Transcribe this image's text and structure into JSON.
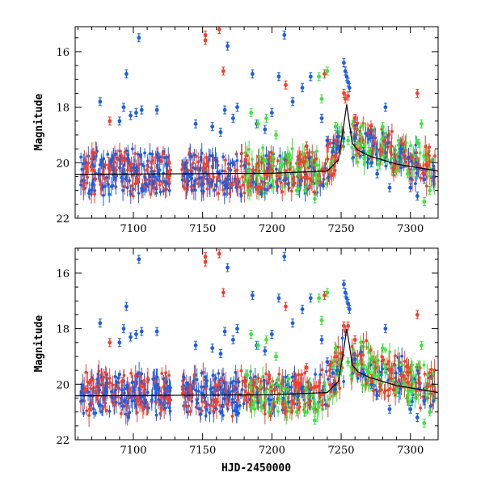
{
  "chart_data": [
    {
      "type": "scatter",
      "panel": "top",
      "title": "",
      "xlabel": "",
      "ylabel": "Magnitude",
      "xlim": [
        7058,
        7320
      ],
      "ylim": [
        22,
        15.1
      ],
      "y_inverted": true,
      "xticks": [
        7100,
        7150,
        7200,
        7250,
        7300
      ],
      "xtick_labels": [
        "7100",
        "7150",
        "7200",
        "7250",
        "7300"
      ],
      "yticks": [
        16,
        18,
        20,
        22
      ],
      "ytick_labels": [
        "16",
        "18",
        "20",
        "22"
      ],
      "model_curve": {
        "name": "model",
        "color": "#000000",
        "x": [
          7058,
          7200,
          7240,
          7248,
          7252,
          7254,
          7256,
          7258,
          7262,
          7270,
          7290,
          7320
        ],
        "y": [
          20.42,
          20.38,
          20.3,
          19.9,
          18.6,
          17.9,
          18.6,
          19.3,
          19.55,
          19.75,
          20.05,
          20.3
        ]
      },
      "series": [
        {
          "name": "blue observations",
          "color": "#1e5fe0",
          "points": [
            [
              7076,
              17.8
            ],
            [
              7090,
              18.5
            ],
            [
              7093,
              18.0
            ],
            [
              7095,
              16.8
            ],
            [
              7098,
              18.3
            ],
            [
              7102,
              18.2
            ],
            [
              7104,
              15.5
            ],
            [
              7106,
              18.1
            ],
            [
              7117,
              18.1
            ],
            [
              7145,
              18.6
            ],
            [
              7157,
              18.7
            ],
            [
              7163,
              18.9
            ],
            [
              7166,
              18.1
            ],
            [
              7168,
              15.8
            ],
            [
              7172,
              18.4
            ],
            [
              7175,
              18.0
            ],
            [
              7186,
              16.8
            ],
            [
              7189,
              18.6
            ],
            [
              7195,
              18.8
            ],
            [
              7200,
              18.2
            ],
            [
              7205,
              16.9
            ],
            [
              7209,
              15.4
            ],
            [
              7215,
              17.8
            ],
            [
              7222,
              17.3
            ],
            [
              7228,
              16.9
            ],
            [
              7236,
              18.4
            ],
            [
              7240,
              19.2
            ],
            [
              7244,
              19.6
            ],
            [
              7247,
              19.5
            ],
            [
              7252,
              16.4
            ],
            [
              7253,
              16.7
            ],
            [
              7254,
              16.9
            ],
            [
              7255,
              17.1
            ],
            [
              7256,
              17.3
            ],
            [
              7260,
              19.1
            ],
            [
              7266,
              19.6
            ],
            [
              7272,
              20.0
            ],
            [
              7276,
              20.4
            ],
            [
              7282,
              18.0
            ],
            [
              7285,
              20.9
            ],
            [
              7293,
              19.5
            ],
            [
              7300,
              20.9
            ],
            [
              7305,
              21.2
            ],
            [
              7310,
              20.6
            ]
          ]
        },
        {
          "name": "red observations",
          "color": "#f0412e",
          "points": [
            [
              7066,
              20.2
            ],
            [
              7083,
              18.5
            ],
            [
              7092,
              19.9
            ],
            [
              7103,
              20.6
            ],
            [
              7125,
              20.5
            ],
            [
              7152,
              15.4
            ],
            [
              7152,
              15.6
            ],
            [
              7162,
              15.2
            ],
            [
              7165,
              16.7
            ],
            [
              7181,
              19.9
            ],
            [
              7198,
              19.8
            ],
            [
              7210,
              17.2
            ],
            [
              7225,
              19.4
            ],
            [
              7238,
              16.8
            ],
            [
              7242,
              19.3
            ],
            [
              7252,
              17.5
            ],
            [
              7253,
              17.7
            ],
            [
              7255,
              17.6
            ],
            [
              7260,
              18.4
            ],
            [
              7272,
              19.8
            ],
            [
              7288,
              20.2
            ],
            [
              7295,
              19.7
            ],
            [
              7305,
              17.5
            ],
            [
              7312,
              20.1
            ]
          ]
        },
        {
          "name": "green observations",
          "color": "#3ee33e",
          "points": [
            [
              7185,
              18.2
            ],
            [
              7190,
              18.6
            ],
            [
              7196,
              18.4
            ],
            [
              7203,
              19.0
            ],
            [
              7212,
              19.8
            ],
            [
              7218,
              21.0
            ],
            [
              7224,
              21.0
            ],
            [
              7231,
              21.3
            ],
            [
              7234,
              16.9
            ],
            [
              7236,
              17.7
            ],
            [
              7240,
              16.7
            ],
            [
              7246,
              18.7
            ],
            [
              7255,
              19.2
            ],
            [
              7262,
              19.3
            ],
            [
              7270,
              19.6
            ],
            [
              7280,
              18.7
            ],
            [
              7290,
              20.3
            ],
            [
              7298,
              20.4
            ],
            [
              7306,
              19.3
            ],
            [
              7308,
              18.6
            ],
            [
              7310,
              21.4
            ],
            [
              7314,
              21.0
            ]
          ]
        }
      ]
    },
    {
      "type": "scatter",
      "panel": "bottom",
      "title": "",
      "xlabel": "HJD-2450000",
      "ylabel": "Magnitude",
      "xlim": [
        7058,
        7320
      ],
      "ylim": [
        22,
        15.1
      ],
      "y_inverted": true,
      "xticks": [
        7100,
        7150,
        7200,
        7250,
        7300
      ],
      "xtick_labels": [
        "7100",
        "7150",
        "7200",
        "7250",
        "7300"
      ],
      "yticks": [
        16,
        18,
        20,
        22
      ],
      "ytick_labels": [
        "16",
        "18",
        "20",
        "22"
      ],
      "model_curve": {
        "name": "model",
        "color": "#000000",
        "x": [
          7058,
          7200,
          7240,
          7248,
          7252,
          7254,
          7256,
          7258,
          7262,
          7270,
          7290,
          7320
        ],
        "y": [
          20.42,
          20.38,
          20.3,
          19.9,
          18.7,
          18.0,
          18.6,
          19.3,
          19.55,
          19.75,
          20.05,
          20.3
        ]
      },
      "series": [
        {
          "name": "blue observations",
          "color": "#1e5fe0",
          "points": [
            [
              7076,
              17.8
            ],
            [
              7090,
              18.5
            ],
            [
              7093,
              18.0
            ],
            [
              7095,
              17.2
            ],
            [
              7098,
              18.3
            ],
            [
              7102,
              18.2
            ],
            [
              7104,
              15.5
            ],
            [
              7106,
              18.1
            ],
            [
              7117,
              18.1
            ],
            [
              7145,
              18.6
            ],
            [
              7157,
              18.7
            ],
            [
              7163,
              18.9
            ],
            [
              7166,
              18.1
            ],
            [
              7168,
              15.8
            ],
            [
              7172,
              18.4
            ],
            [
              7175,
              18.0
            ],
            [
              7186,
              16.8
            ],
            [
              7189,
              18.6
            ],
            [
              7195,
              18.8
            ],
            [
              7200,
              18.2
            ],
            [
              7205,
              16.9
            ],
            [
              7209,
              15.4
            ],
            [
              7215,
              17.8
            ],
            [
              7222,
              17.3
            ],
            [
              7228,
              16.9
            ],
            [
              7236,
              18.4
            ],
            [
              7240,
              19.2
            ],
            [
              7244,
              19.6
            ],
            [
              7247,
              19.5
            ],
            [
              7252,
              16.4
            ],
            [
              7253,
              16.7
            ],
            [
              7254,
              16.9
            ],
            [
              7255,
              17.1
            ],
            [
              7256,
              17.3
            ],
            [
              7260,
              19.1
            ],
            [
              7266,
              19.6
            ],
            [
              7272,
              20.0
            ],
            [
              7276,
              20.4
            ],
            [
              7282,
              18.0
            ],
            [
              7285,
              20.9
            ],
            [
              7293,
              19.5
            ],
            [
              7300,
              20.9
            ],
            [
              7305,
              21.2
            ],
            [
              7310,
              20.6
            ]
          ]
        },
        {
          "name": "red observations",
          "color": "#f0412e",
          "points": [
            [
              7066,
              20.2
            ],
            [
              7083,
              18.5
            ],
            [
              7092,
              19.9
            ],
            [
              7103,
              20.6
            ],
            [
              7125,
              20.5
            ],
            [
              7152,
              15.4
            ],
            [
              7152,
              15.6
            ],
            [
              7162,
              15.3
            ],
            [
              7165,
              16.7
            ],
            [
              7181,
              19.9
            ],
            [
              7198,
              19.8
            ],
            [
              7210,
              17.2
            ],
            [
              7225,
              19.4
            ],
            [
              7238,
              16.8
            ],
            [
              7242,
              19.3
            ],
            [
              7252,
              17.9
            ],
            [
              7253,
              18.1
            ],
            [
              7255,
              17.9
            ],
            [
              7260,
              18.4
            ],
            [
              7272,
              19.8
            ],
            [
              7288,
              20.2
            ],
            [
              7295,
              19.7
            ],
            [
              7305,
              17.5
            ],
            [
              7312,
              20.1
            ]
          ]
        },
        {
          "name": "green observations",
          "color": "#3ee33e",
          "points": [
            [
              7185,
              18.2
            ],
            [
              7190,
              18.6
            ],
            [
              7196,
              18.4
            ],
            [
              7203,
              19.0
            ],
            [
              7212,
              19.8
            ],
            [
              7218,
              21.0
            ],
            [
              7224,
              21.0
            ],
            [
              7231,
              21.3
            ],
            [
              7234,
              16.9
            ],
            [
              7236,
              17.7
            ],
            [
              7240,
              16.7
            ],
            [
              7246,
              18.7
            ],
            [
              7255,
              19.2
            ],
            [
              7262,
              19.3
            ],
            [
              7270,
              19.6
            ],
            [
              7280,
              18.7
            ],
            [
              7290,
              20.3
            ],
            [
              7298,
              20.4
            ],
            [
              7306,
              19.3
            ],
            [
              7308,
              18.6
            ],
            [
              7310,
              21.4
            ],
            [
              7314,
              21.0
            ]
          ]
        }
      ]
    }
  ]
}
